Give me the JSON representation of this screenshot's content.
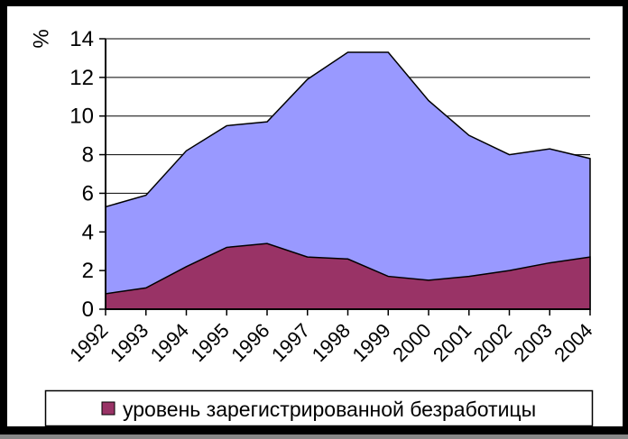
{
  "colors": {
    "border": "#000000",
    "background": "#ffffff",
    "grid": "#000000",
    "axis": "#000000"
  },
  "chart_data": {
    "type": "area",
    "stacked": false,
    "title": "",
    "xlabel": "",
    "ylabel": "%",
    "ylim": [
      0,
      14
    ],
    "yticks": [
      0,
      2,
      4,
      6,
      8,
      10,
      12,
      14
    ],
    "grid": true,
    "categories": [
      "1992",
      "1993",
      "1994",
      "1995",
      "1996",
      "1997",
      "1998",
      "1999",
      "2000",
      "2001",
      "2002",
      "2003",
      "2004"
    ],
    "series": [
      {
        "name": "",
        "color": "#9999FF",
        "values": [
          5.3,
          5.9,
          8.2,
          9.5,
          9.7,
          11.9,
          13.3,
          13.3,
          10.8,
          9.0,
          8.0,
          8.3,
          7.8
        ]
      },
      {
        "name": "уровень зарегистрированной безработицы",
        "color": "#993366",
        "values": [
          0.8,
          1.1,
          2.2,
          3.2,
          3.4,
          2.7,
          2.6,
          1.7,
          1.5,
          1.7,
          2.0,
          2.4,
          2.7
        ]
      }
    ],
    "legend": {
      "position": "bottom",
      "entries": [
        {
          "label": "уровень зарегистрированной безработицы",
          "color": "#993366"
        }
      ]
    }
  }
}
